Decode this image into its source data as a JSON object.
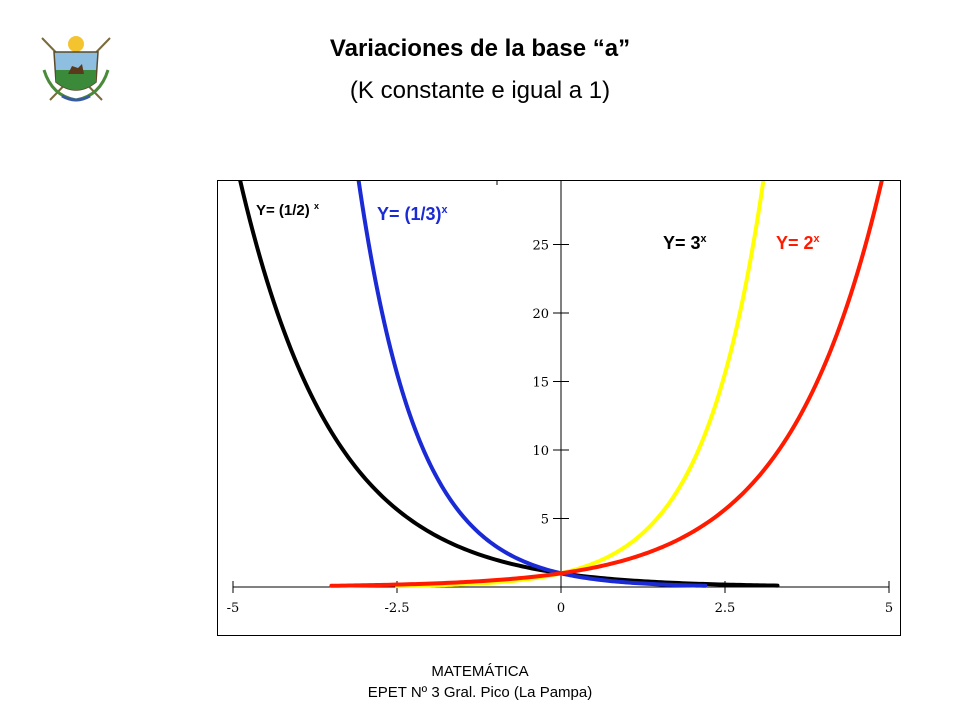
{
  "header": {
    "title": "Variaciones de la base “a”",
    "subtitle": "(K constante e igual a 1)"
  },
  "footer": {
    "line1": "MATEMÁTICA",
    "line2": "EPET Nº 3 Gral. Pico (La Pampa)"
  },
  "chart_data": {
    "type": "line",
    "title": "Variaciones de la base “a”",
    "subtitle": "(K constante e igual a 1)",
    "xlim": [
      -5,
      5
    ],
    "ylim": [
      -2,
      30
    ],
    "x_ticks": [
      -5,
      -2.5,
      0,
      2.5,
      5
    ],
    "x_tick_labels": [
      "-5",
      "-2.5",
      "0",
      "2.5",
      "5"
    ],
    "y_ticks": [
      5,
      10,
      15,
      20,
      25
    ],
    "y_tick_labels": [
      "5",
      "10",
      "15",
      "20",
      "25"
    ],
    "grid": false,
    "series": [
      {
        "name": "Y= (1/2) x",
        "base_text": "Y= (1/2) ",
        "exp_text": "x",
        "base": 0.5,
        "x_range": [
          -5,
          3.3
        ],
        "color": "#000000",
        "points": [
          [
            -5,
            32
          ],
          [
            -4,
            16
          ],
          [
            -3,
            8
          ],
          [
            -2,
            4
          ],
          [
            -1,
            2
          ],
          [
            0,
            1
          ],
          [
            1,
            0.5
          ],
          [
            2,
            0.25
          ],
          [
            3,
            0.125
          ]
        ]
      },
      {
        "name": "Y= (1/3)x",
        "base_text": "Y= (1/3)",
        "exp_text": "x",
        "base": 0.3333,
        "x_range": [
          -3.2,
          2.2
        ],
        "color": "#1a2bd6",
        "points": [
          [
            -3,
            27
          ],
          [
            -2,
            9
          ],
          [
            -1,
            3
          ],
          [
            0,
            1
          ],
          [
            1,
            0.333
          ],
          [
            2,
            0.111
          ]
        ]
      },
      {
        "name": "Y= 3x",
        "base_text": "Y= 3",
        "exp_text": "x",
        "base": 3,
        "x_range": [
          -2.5,
          3.2
        ],
        "color": "#ffff00",
        "points": [
          [
            -2,
            0.111
          ],
          [
            -1,
            0.333
          ],
          [
            0,
            1
          ],
          [
            1,
            3
          ],
          [
            2,
            9
          ],
          [
            3,
            27
          ]
        ]
      },
      {
        "name": "Y= 2x",
        "base_text": "Y= 2",
        "exp_text": "x",
        "base": 2,
        "x_range": [
          -3.5,
          5
        ],
        "color": "#ff1a00",
        "points": [
          [
            -3,
            0.125
          ],
          [
            -2,
            0.25
          ],
          [
            -1,
            0.5
          ],
          [
            0,
            1
          ],
          [
            1,
            2
          ],
          [
            2,
            4
          ],
          [
            3,
            8
          ],
          [
            4,
            16
          ],
          [
            5,
            32
          ]
        ]
      }
    ]
  }
}
